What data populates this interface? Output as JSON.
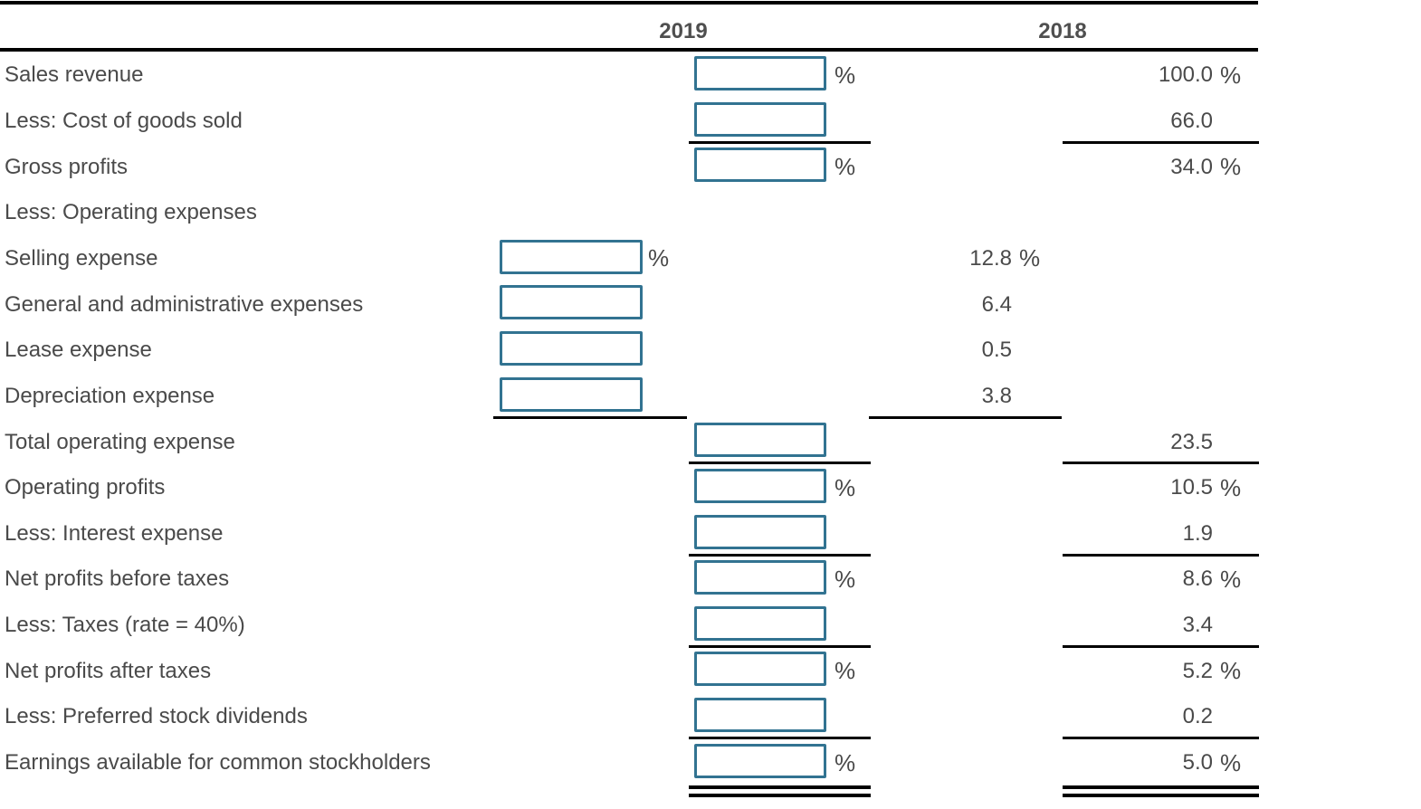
{
  "table": {
    "col_headers": {
      "y2019": "2019",
      "y2018": "2018"
    },
    "percent_sign": "%",
    "rows": [
      {
        "id": "sales-revenue",
        "label": "Sales revenue",
        "input_column": "main",
        "input_value": "",
        "input_pct": true,
        "value_2018": "100.0",
        "value_column": "right",
        "value_pct": true,
        "rules_below": {}
      },
      {
        "id": "cost-of-goods-sold",
        "label": "Less: Cost of goods sold",
        "input_column": "main",
        "input_value": "",
        "input_pct": false,
        "value_2018": "66.0",
        "value_column": "right",
        "value_pct": false,
        "rules_below": {
          "main": "single",
          "right": "single"
        }
      },
      {
        "id": "gross-profits",
        "label": "Gross profits",
        "input_column": "main",
        "input_value": "",
        "input_pct": true,
        "value_2018": "34.0",
        "value_column": "right",
        "value_pct": true,
        "rules_below": {}
      },
      {
        "id": "operating-expenses-header",
        "label": "Less: Operating expenses",
        "input_column": null,
        "input_value": "",
        "input_pct": false,
        "value_2018": null,
        "value_column": null,
        "value_pct": false,
        "rules_below": {}
      },
      {
        "id": "selling-expense",
        "label": "Selling expense",
        "input_column": "left",
        "input_value": "",
        "input_pct": true,
        "value_2018": "12.8",
        "value_column": "mid",
        "value_pct": true,
        "rules_below": {}
      },
      {
        "id": "general-admin-expenses",
        "label": "General and administrative expenses",
        "input_column": "left",
        "input_value": "",
        "input_pct": false,
        "value_2018": "6.4",
        "value_column": "mid",
        "value_pct": false,
        "rules_below": {}
      },
      {
        "id": "lease-expense",
        "label": "Lease expense",
        "input_column": "left",
        "input_value": "",
        "input_pct": false,
        "value_2018": "0.5",
        "value_column": "mid",
        "value_pct": false,
        "rules_below": {}
      },
      {
        "id": "depreciation-expense",
        "label": "Depreciation expense",
        "input_column": "left",
        "input_value": "",
        "input_pct": false,
        "value_2018": "3.8",
        "value_column": "mid",
        "value_pct": false,
        "rules_below": {
          "left": "single",
          "mid": "single"
        }
      },
      {
        "id": "total-operating-expense",
        "label": "Total operating expense",
        "input_column": "main",
        "input_value": "",
        "input_pct": false,
        "value_2018": "23.5",
        "value_column": "right",
        "value_pct": false,
        "rules_below": {
          "main": "single",
          "right": "single"
        }
      },
      {
        "id": "operating-profits",
        "label": "Operating profits",
        "input_column": "main",
        "input_value": "",
        "input_pct": true,
        "value_2018": "10.5",
        "value_column": "right",
        "value_pct": true,
        "rules_below": {}
      },
      {
        "id": "interest-expense",
        "label": "Less: Interest expense",
        "input_column": "main",
        "input_value": "",
        "input_pct": false,
        "value_2018": "1.9",
        "value_column": "right",
        "value_pct": false,
        "rules_below": {
          "main": "single",
          "right": "single"
        }
      },
      {
        "id": "net-profits-before-taxes",
        "label": "Net profits before taxes",
        "input_column": "main",
        "input_value": "",
        "input_pct": true,
        "value_2018": "8.6",
        "value_column": "right",
        "value_pct": true,
        "rules_below": {}
      },
      {
        "id": "taxes",
        "label": "Less: Taxes (rate = 40%)",
        "input_column": "main",
        "input_value": "",
        "input_pct": false,
        "value_2018": "3.4",
        "value_column": "right",
        "value_pct": false,
        "rules_below": {
          "main": "single",
          "right": "single"
        }
      },
      {
        "id": "net-profits-after-taxes",
        "label": "Net profits after taxes",
        "input_column": "main",
        "input_value": "",
        "input_pct": true,
        "value_2018": "5.2",
        "value_column": "right",
        "value_pct": true,
        "rules_below": {}
      },
      {
        "id": "preferred-stock-dividends",
        "label": "Less: Preferred stock dividends",
        "input_column": "main",
        "input_value": "",
        "input_pct": false,
        "value_2018": "0.2",
        "value_column": "right",
        "value_pct": false,
        "rules_below": {
          "main": "single",
          "right": "single"
        }
      },
      {
        "id": "earnings-available-common",
        "label": "Earnings available for common stockholders",
        "input_column": "main",
        "input_value": "",
        "input_pct": true,
        "value_2018": "5.0",
        "value_column": "right",
        "value_pct": true,
        "rules_below": {
          "main": "double",
          "right": "double"
        }
      }
    ]
  }
}
